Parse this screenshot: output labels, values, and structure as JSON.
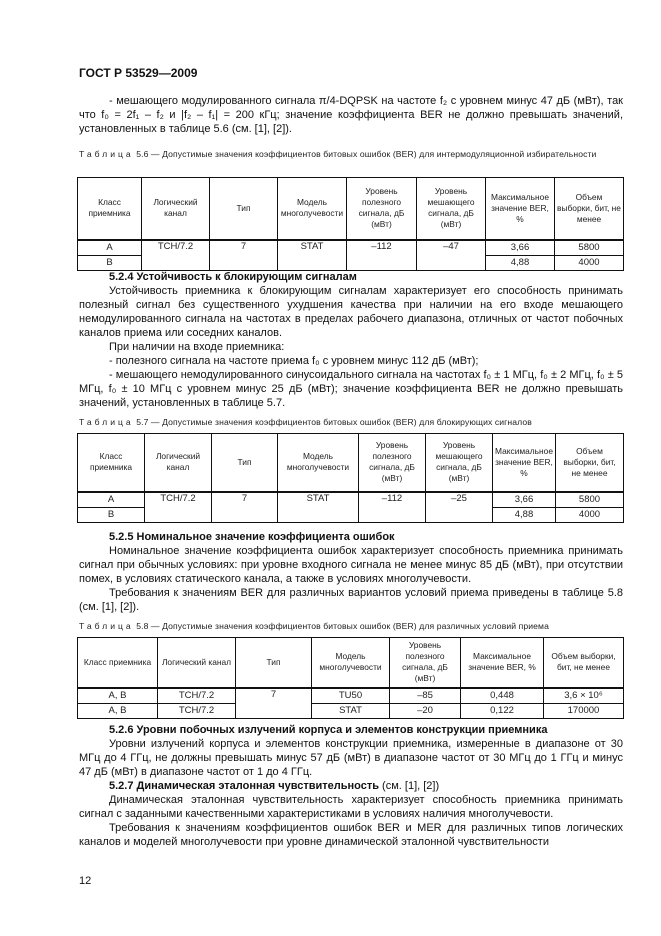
{
  "header": "ГОСТ Р 53529—2009",
  "page_number": "12",
  "intro": [
    "- мешающего модулированного сигнала π/4-DQPSK на частоте f₂ с уровнем минус 47 дБ (мВт), так что f₀ = 2f₁ – f₂ и |f₂ – f₁| = 200 кГц; значение коэффициента BER не должно превышать значений, установленных в таблице 5.6 (см. [1], [2])."
  ],
  "table56": {
    "caption_prefix": "Таблица",
    "caption": "5.6 — Допустимые значения коэффициентов битовых ошибок (BER) для интермодуляционной избирательности",
    "headers": [
      "Класс приемника",
      "Логический канал",
      "Тип",
      "Модель многолучевости",
      "Уровень полезного сигнала, дБ (мВт)",
      "Уровень мешающего сигнала, дБ (мВт)",
      "Максимальное значение BER, %",
      "Объем выборки, бит, не менее"
    ],
    "rows": [
      [
        "A",
        "TCH/7.2",
        "7",
        "STAT",
        "–112",
        "–47",
        "3,66",
        "5800"
      ],
      [
        "B",
        "4,88",
        "4000"
      ]
    ]
  },
  "s524": {
    "heading": "5.2.4 Устойчивость к блокирующим сигналам",
    "paragraphs": [
      "Устойчивость приемника к блокирующим сигналам характеризует его способность принимать полезный сигнал без существенного ухудшения качества при наличии на его входе мешающего немодулированного сигнала на частотах в пределах рабочего диапазона, отличных от частот побочных каналов приема или соседних каналов.",
      "При наличии на входе приемника:",
      "- полезного сигнала на частоте приема f₀ с уровнем минус 112 дБ (мВт);",
      "- мешающего немодулированного синусоидального сигнала на частотах f₀ ± 1 МГц, f₀ ± 2 МГц, f₀ ± 5 МГц, f₀ ± 10 МГц с уровнем минус 25 дБ (мВт); значение коэффициента BER не должно превышать значений, установленных в таблице 5.7."
    ]
  },
  "table57": {
    "caption_prefix": "Таблица",
    "caption": "5.7 — Допустимые значения коэффициентов битовых ошибок (BER) для блокирующих сигналов",
    "headers": [
      "Класс приемника",
      "Логический канал",
      "Тип",
      "Модель многолучевости",
      "Уровень полезного сигнала, дБ (мВт)",
      "Уровень мешающего сигнала, дБ (мВт)",
      "Максимальное значение BER, %",
      "Объем выборки, бит, не менее"
    ],
    "rows": [
      [
        "A",
        "TCH/7.2",
        "7",
        "STAT",
        "–112",
        "–25",
        "3,66",
        "5800"
      ],
      [
        "B",
        "4,88",
        "4000"
      ]
    ]
  },
  "s525": {
    "heading": "5.2.5 Номинальное значение коэффициента ошибок",
    "paragraphs": [
      "Номинальное значение коэффициента ошибок характеризует способность приемника принимать сигнал при обычных условиях: при уровне входного сигнала не менее минус 85 дБ (мВт), при отсутствии помех, в условиях статического канала, а также в условиях многолучевости.",
      "Требования к значениям BER для различных вариантов условий приема приведены в таблице 5.8 (см. [1], [2])."
    ]
  },
  "table58": {
    "caption_prefix": "Таблица",
    "caption": "5.8 — Допустимые значения коэффициентов битовых ошибок (BER) для различных условий приема",
    "headers": [
      "Класс приемника",
      "Логический канал",
      "Тип",
      "Модель многолучевости",
      "Уровень полезного сигнала, дБ (мВт)",
      "Максимальное значение BER, %",
      "Объем выборки, бит, не менее"
    ],
    "rows": [
      [
        "A, B",
        "TCH/7.2",
        "7",
        "TU50",
        "–85",
        "0,448",
        "3,6 × 10⁶"
      ],
      [
        "A, B",
        "TCH/7.2",
        "STAT",
        "–20",
        "0,122",
        "170000"
      ]
    ]
  },
  "s526": {
    "heading": "5.2.6 Уровни побочных излучений корпуса и элементов конструкции приемника",
    "paragraphs": [
      "Уровни излучений корпуса и элементов конструкции приемника, измеренные в диапазоне от 30 МГц до 4 ГГц, не должны превышать минус 57 дБ (мВт) в диапазоне частот от 30 МГц до 1 ГГц и минус 47 дБ (мВт) в диапазоне частот от 1 до 4 ГГц."
    ]
  },
  "s527": {
    "heading": "5.2.7 Динамическая эталонная чувствительность",
    "heading_ref": " (см. [1], [2])",
    "paragraphs": [
      "Динамическая эталонная чувствительность характеризует способность приемника принимать сигнал с заданными качественными характеристиками в условиях наличия многолучевости.",
      "Требования к значениям коэффициентов ошибок BER и MER для различных типов логических каналов и моделей многолучевости при уровне динамической эталонной чувствительности"
    ]
  }
}
